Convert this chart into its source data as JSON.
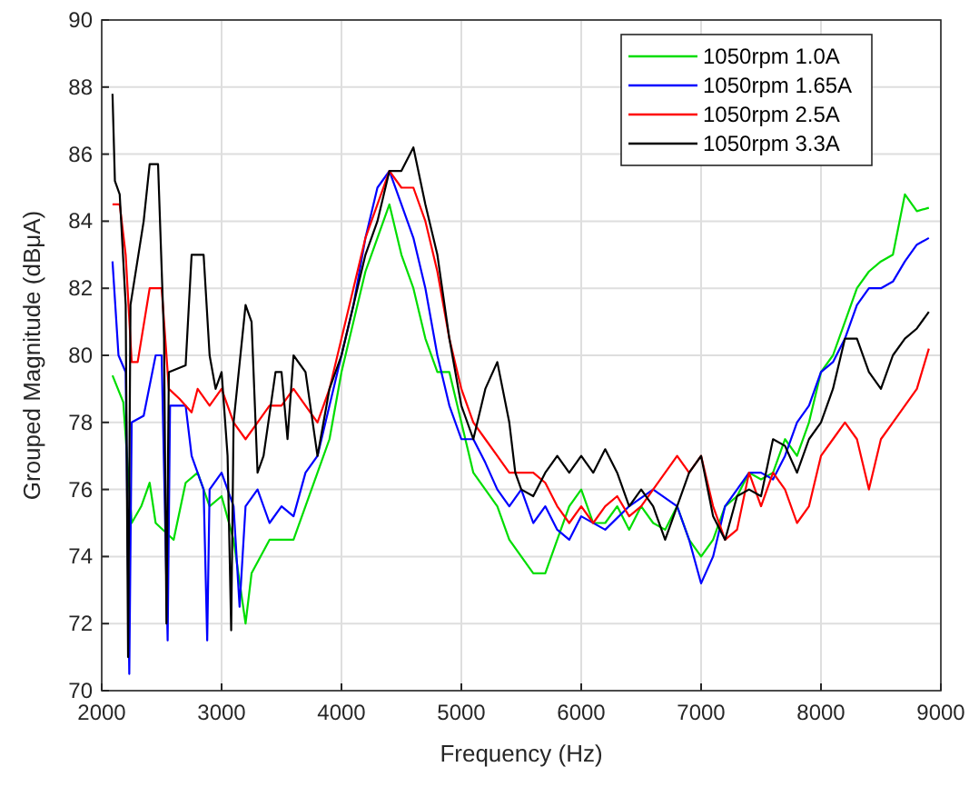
{
  "chart_data": {
    "type": "line",
    "xlabel": "Frequency (Hz)",
    "ylabel": "Grouped Magnitude (dBμA)",
    "xlim": [
      2000,
      9000
    ],
    "ylim": [
      70,
      90
    ],
    "xticks": [
      2000,
      3000,
      4000,
      5000,
      6000,
      7000,
      8000,
      9000
    ],
    "yticks": [
      70,
      72,
      74,
      76,
      78,
      80,
      82,
      84,
      86,
      88,
      90
    ],
    "grid": true,
    "legend": "top right",
    "line_style": "solid",
    "series": [
      {
        "name": "1050rpm 1.0A",
        "color": "#00dd00",
        "x": [
          2090,
          2180,
          2250,
          2330,
          2400,
          2450,
          2600,
          2700,
          2800,
          2900,
          3000,
          3100,
          3200,
          3250,
          3400,
          3600,
          3800,
          3900,
          4000,
          4100,
          4200,
          4300,
          4400,
          4500,
          4600,
          4700,
          4800,
          4900,
          5000,
          5100,
          5200,
          5300,
          5400,
          5500,
          5600,
          5700,
          5800,
          5900,
          6000,
          6100,
          6200,
          6300,
          6400,
          6500,
          6600,
          6700,
          6800,
          6900,
          7000,
          7100,
          7200,
          7300,
          7400,
          7500,
          7600,
          7700,
          7800,
          7900,
          8000,
          8100,
          8200,
          8300,
          8400,
          8500,
          8600,
          8700,
          8800,
          8900
        ],
        "values": [
          79.4,
          78.6,
          75.0,
          75.5,
          76.2,
          75.0,
          74.5,
          76.2,
          76.5,
          75.5,
          75.8,
          74.5,
          72.0,
          73.5,
          74.5,
          74.5,
          76.5,
          77.5,
          79.5,
          81.0,
          82.5,
          83.5,
          84.5,
          83.0,
          82.0,
          80.5,
          79.5,
          79.5,
          78.0,
          76.5,
          76.0,
          75.5,
          74.5,
          74.0,
          73.5,
          73.5,
          74.5,
          75.5,
          76.0,
          75.0,
          75.0,
          75.5,
          74.8,
          75.5,
          75.0,
          74.8,
          75.5,
          74.5,
          74.0,
          74.5,
          75.5,
          75.8,
          76.5,
          76.3,
          76.5,
          77.5,
          77.0,
          78.0,
          79.5,
          80.0,
          81.0,
          82.0,
          82.5,
          82.8,
          83.0,
          84.8,
          84.3,
          84.4
        ]
      },
      {
        "name": "1050rpm 1.65A",
        "color": "#0000ff",
        "x": [
          2090,
          2140,
          2200,
          2230,
          2250,
          2350,
          2450,
          2500,
          2550,
          2570,
          2700,
          2750,
          2850,
          2880,
          2900,
          3000,
          3100,
          3150,
          3200,
          3300,
          3400,
          3500,
          3600,
          3700,
          3800,
          3900,
          4000,
          4100,
          4200,
          4300,
          4400,
          4500,
          4600,
          4700,
          4800,
          4900,
          5000,
          5100,
          5200,
          5300,
          5400,
          5500,
          5600,
          5700,
          5800,
          5900,
          6000,
          6200,
          6400,
          6600,
          6800,
          6900,
          7000,
          7100,
          7200,
          7300,
          7400,
          7500,
          7600,
          7700,
          7800,
          7900,
          8000,
          8100,
          8200,
          8300,
          8400,
          8500,
          8600,
          8700,
          8800,
          8900
        ],
        "values": [
          82.8,
          80.0,
          79.5,
          70.5,
          78.0,
          78.2,
          80.0,
          80.0,
          71.5,
          78.5,
          78.5,
          77.0,
          76.0,
          71.5,
          76.0,
          76.5,
          75.5,
          72.5,
          75.5,
          76.0,
          75.0,
          75.5,
          75.2,
          76.5,
          77.0,
          78.5,
          80.0,
          81.5,
          83.5,
          85.0,
          85.5,
          84.5,
          83.5,
          82.0,
          80.0,
          78.5,
          77.5,
          77.5,
          76.8,
          76.0,
          75.5,
          76.0,
          75.0,
          75.5,
          74.8,
          74.5,
          75.2,
          74.8,
          75.5,
          76.0,
          75.5,
          74.5,
          73.2,
          74.0,
          75.5,
          76.0,
          76.5,
          76.5,
          76.3,
          77.0,
          78.0,
          78.5,
          79.5,
          79.8,
          80.5,
          81.5,
          82.0,
          82.0,
          82.2,
          82.8,
          83.3,
          83.5
        ]
      },
      {
        "name": "1050rpm 2.5A",
        "color": "#ff0000",
        "x": [
          2090,
          2150,
          2200,
          2250,
          2300,
          2400,
          2500,
          2560,
          2650,
          2750,
          2800,
          2900,
          3000,
          3100,
          3200,
          3300,
          3400,
          3500,
          3600,
          3700,
          3800,
          3900,
          4000,
          4100,
          4200,
          4300,
          4400,
          4500,
          4600,
          4700,
          4800,
          4900,
          5000,
          5100,
          5200,
          5300,
          5400,
          5500,
          5600,
          5700,
          5800,
          5900,
          6000,
          6100,
          6200,
          6300,
          6400,
          6500,
          6600,
          6700,
          6800,
          6900,
          7000,
          7100,
          7200,
          7300,
          7400,
          7500,
          7600,
          7700,
          7800,
          7900,
          8000,
          8100,
          8200,
          8300,
          8400,
          8500,
          8600,
          8700,
          8800,
          8900
        ],
        "values": [
          84.5,
          84.5,
          83.0,
          79.8,
          79.8,
          82.0,
          82.0,
          79.0,
          78.7,
          78.3,
          79.0,
          78.5,
          79.0,
          78.0,
          77.5,
          78.0,
          78.5,
          78.5,
          79.0,
          78.5,
          78.0,
          79.0,
          80.5,
          82.0,
          83.5,
          84.5,
          85.5,
          85.0,
          85.0,
          84.0,
          82.5,
          80.5,
          79.0,
          78.0,
          77.5,
          77.0,
          76.5,
          76.5,
          76.5,
          76.2,
          75.5,
          75.0,
          75.5,
          75.0,
          75.5,
          75.8,
          75.2,
          75.5,
          76.0,
          76.5,
          77.0,
          76.5,
          77.0,
          75.5,
          74.5,
          74.8,
          76.5,
          75.5,
          76.5,
          76.0,
          75.0,
          75.5,
          77.0,
          77.5,
          78.0,
          77.5,
          76.0,
          77.5,
          78.0,
          78.5,
          79.0,
          80.2
        ]
      },
      {
        "name": "1050rpm 3.3A",
        "color": "#000000",
        "x": [
          2090,
          2110,
          2150,
          2200,
          2220,
          2240,
          2350,
          2400,
          2470,
          2520,
          2540,
          2560,
          2700,
          2750,
          2850,
          2900,
          2950,
          3000,
          3050,
          3080,
          3100,
          3200,
          3250,
          3300,
          3350,
          3450,
          3500,
          3550,
          3600,
          3700,
          3800,
          3900,
          4000,
          4100,
          4200,
          4300,
          4400,
          4500,
          4600,
          4700,
          4800,
          4900,
          5000,
          5100,
          5200,
          5300,
          5400,
          5450,
          5500,
          5600,
          5700,
          5800,
          5900,
          6000,
          6100,
          6200,
          6300,
          6400,
          6500,
          6600,
          6700,
          6800,
          6900,
          7000,
          7100,
          7200,
          7300,
          7400,
          7500,
          7600,
          7700,
          7800,
          7900,
          8000,
          8100,
          8200,
          8300,
          8400,
          8500,
          8600,
          8700,
          8800,
          8900
        ],
        "values": [
          87.8,
          85.2,
          84.8,
          81.5,
          71.0,
          81.5,
          84.0,
          85.7,
          85.7,
          80.5,
          72.0,
          79.5,
          79.7,
          83.0,
          83.0,
          80.0,
          79.0,
          79.5,
          77.0,
          71.8,
          78.0,
          81.5,
          81.0,
          76.5,
          77.0,
          79.5,
          79.5,
          77.5,
          80.0,
          79.5,
          77.0,
          79.0,
          80.0,
          81.5,
          83.0,
          84.0,
          85.5,
          85.5,
          86.2,
          84.5,
          83.0,
          80.5,
          78.5,
          77.5,
          79.0,
          79.8,
          78.0,
          76.5,
          76.0,
          75.8,
          76.5,
          77.0,
          76.5,
          77.0,
          76.5,
          77.2,
          76.5,
          75.5,
          76.0,
          75.5,
          74.5,
          75.5,
          76.5,
          77.0,
          75.2,
          74.5,
          75.8,
          76.0,
          75.8,
          77.5,
          77.3,
          76.5,
          77.5,
          78.0,
          79.0,
          80.5,
          80.5,
          79.5,
          79.0,
          80.0,
          80.5,
          80.8,
          81.3
        ]
      }
    ]
  }
}
